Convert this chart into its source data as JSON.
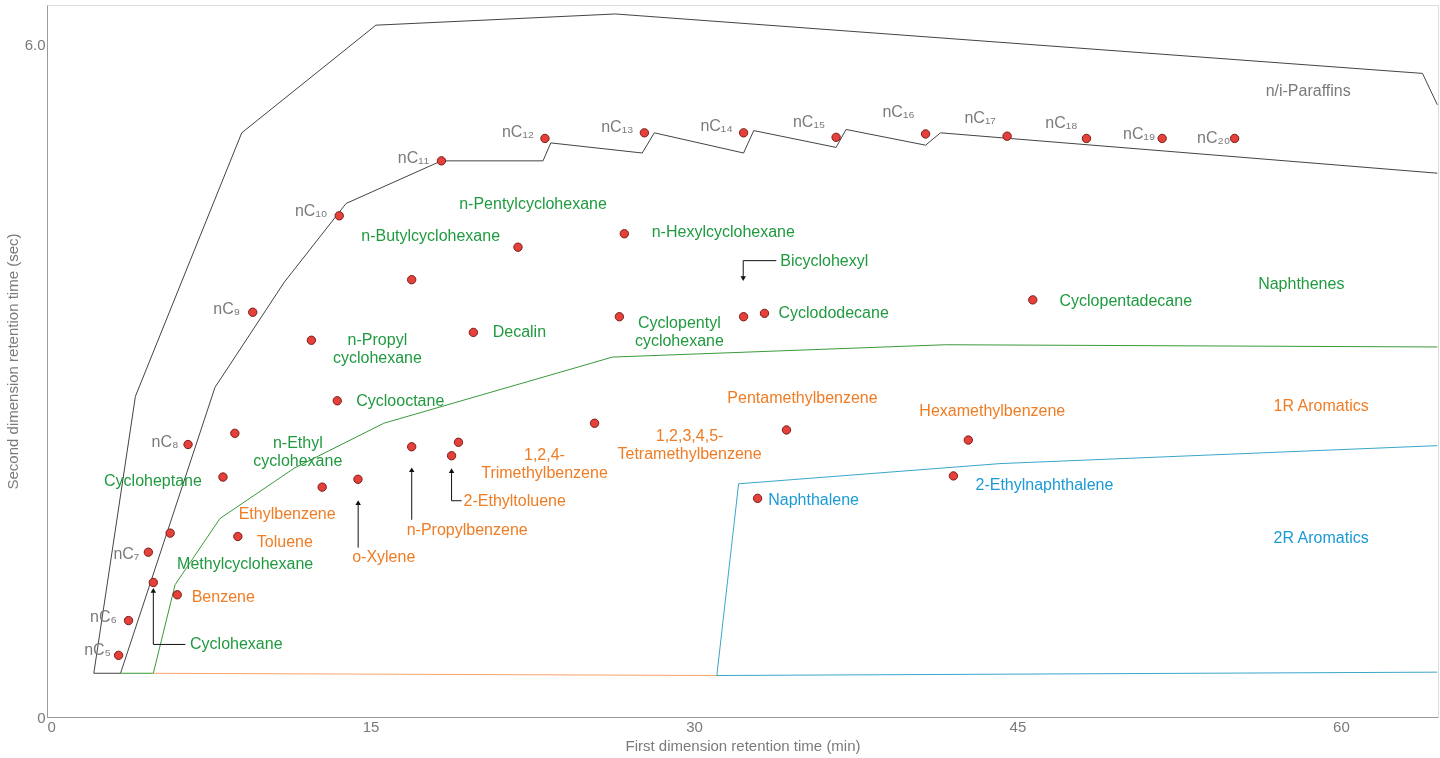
{
  "chart_data": {
    "type": "scatter",
    "xlabel": "First dimension retention time (min)",
    "ylabel": "Second dimension retention time (sec)",
    "xlim": [
      0,
      64.5
    ],
    "ylim": [
      0,
      6.35
    ],
    "xticks": [
      0,
      15,
      30,
      45,
      60
    ],
    "yticks": [
      0,
      {
        "value": 6,
        "label": "6.0"
      }
    ],
    "grid": false,
    "marker": "circle",
    "series": [
      {
        "type": "line",
        "marker": "none",
        "color": "#444444",
        "line_style": "solid",
        "x": [
          3.41,
          2.17,
          4.1,
          9.03,
          15.25,
          26.36,
          63.78,
          64.47
        ],
        "values": [
          0.39,
          0.39,
          2.86,
          5.21,
          6.17,
          6.27,
          5.74,
          5.46
        ]
      },
      {
        "type": "line",
        "marker": "none",
        "color": "#444444",
        "line_style": "solid",
        "x": [
          3.41,
          7.79,
          11.01,
          13.87,
          18.29,
          23.0,
          23.36,
          27.6,
          28.16,
          32.3,
          32.77,
          36.59,
          37.05,
          40.74,
          41.43,
          64.47
        ],
        "values": [
          0.39,
          2.94,
          3.88,
          4.58,
          4.96,
          4.96,
          5.12,
          5.03,
          5.21,
          5.03,
          5.23,
          5.08,
          5.24,
          5.1,
          5.21,
          4.85
        ]
      },
      {
        "type": "line",
        "marker": "none",
        "color": "#3a9a3a",
        "line_style": "solid",
        "x": [
          3.41,
          4.93,
          5.94,
          8.02,
          11.47,
          15.62,
          26.22,
          41.66,
          64.47
        ],
        "values": [
          0.39,
          0.39,
          1.18,
          1.77,
          2.22,
          2.62,
          3.21,
          3.32,
          3.3
        ]
      },
      {
        "type": "line",
        "marker": "none",
        "color": "#f5a36a",
        "line_style": "solid",
        "x": [
          4.93,
          31.06
        ],
        "values": [
          0.39,
          0.37
        ]
      },
      {
        "type": "line",
        "marker": "none",
        "color": "#3aa6c9",
        "line_style": "solid",
        "x": [
          64.47,
          31.06,
          32.07,
          44.19,
          64.47
        ],
        "values": [
          0.4,
          0.37,
          2.08,
          2.26,
          2.42
        ]
      },
      {
        "color": "#e5403a",
        "x": [
          3.32,
          3.78,
          4.7,
          6.54,
          9.54,
          13.55,
          18.29,
          23.09,
          27.7,
          32.3,
          36.59,
          40.74,
          44.52,
          48.2,
          51.71,
          55.07,
          4.93,
          5.71,
          8.16,
          8.71,
          13.46,
          12.26,
          16.91,
          21.84,
          26.77,
          19.77,
          26.54,
          32.3,
          33.27,
          45.71,
          6.04,
          8.85,
          12.76,
          14.42,
          16.91,
          18.76,
          19.08,
          25.39,
          34.29,
          42.72,
          32.95,
          42.03
        ],
        "values": [
          0.55,
          0.86,
          1.47,
          2.43,
          3.61,
          4.47,
          4.96,
          5.16,
          5.21,
          5.21,
          5.17,
          5.2,
          5.18,
          5.16,
          5.16,
          5.16,
          1.2,
          1.64,
          2.14,
          2.53,
          2.82,
          3.36,
          3.9,
          4.19,
          4.31,
          3.43,
          3.57,
          3.57,
          3.6,
          3.72,
          1.09,
          1.61,
          2.05,
          2.12,
          2.41,
          2.33,
          2.45,
          2.62,
          2.56,
          2.47,
          1.95,
          2.15
        ]
      }
    ],
    "annotations": [
      {
        "text": "nC₅",
        "x": 3.32,
        "y": 0.55
      },
      {
        "text": "nC₆",
        "x": 3.78,
        "y": 0.86
      },
      {
        "text": "nC₇",
        "x": 4.7,
        "y": 1.47
      },
      {
        "text": "nC₈",
        "x": 6.54,
        "y": 2.43
      },
      {
        "text": "nC₉",
        "x": 9.54,
        "y": 3.61
      },
      {
        "text": "nC₁₀",
        "x": 13.55,
        "y": 4.47
      },
      {
        "text": "nC₁₁",
        "x": 18.29,
        "y": 4.96
      },
      {
        "text": "nC₁₂",
        "x": 23.09,
        "y": 5.16
      },
      {
        "text": "nC₁₃",
        "x": 27.7,
        "y": 5.21
      },
      {
        "text": "nC₁₄",
        "x": 32.3,
        "y": 5.21
      },
      {
        "text": "nC₁₅",
        "x": 36.59,
        "y": 5.17
      },
      {
        "text": "nC₁₆",
        "x": 40.74,
        "y": 5.2
      },
      {
        "text": "nC₁₇",
        "x": 44.52,
        "y": 5.18
      },
      {
        "text": "nC₁₈",
        "x": 48.2,
        "y": 5.16
      },
      {
        "text": "nC₁₉",
        "x": 51.71,
        "y": 5.16
      },
      {
        "text": "nC₂₀",
        "x": 55.07,
        "y": 5.16
      },
      "n/i-Paraffins",
      {
        "text": "Cyclohexane",
        "x": 4.93,
        "y": 1.2
      },
      {
        "text": "Methylcyclohexane",
        "x": 5.71,
        "y": 1.64
      },
      {
        "text": "Cycloheptane",
        "x": 8.16,
        "y": 2.14
      },
      {
        "text": "n-Ethyl\ncyclohexane",
        "x": 8.71,
        "y": 2.53
      },
      {
        "text": "Cyclooctane",
        "x": 13.46,
        "y": 2.82
      },
      {
        "text": "n-Propyl\ncyclohexane",
        "x": 12.26,
        "y": 3.36
      },
      {
        "text": "n-Butylcyclohexane",
        "x": 16.91,
        "y": 3.9
      },
      {
        "text": "n-Pentylcyclohexane",
        "x": 21.84,
        "y": 4.19
      },
      {
        "text": "n-Hexylcyclohexane",
        "x": 26.77,
        "y": 4.31
      },
      {
        "text": "Decalin",
        "x": 19.77,
        "y": 3.43
      },
      {
        "text": "Cyclopentyl\ncyclohexane",
        "x": 26.54,
        "y": 3.57
      },
      "Bicyclohexyl",
      {
        "text": "Cyclododecane",
        "x": 33.27,
        "y": 3.6
      },
      {
        "text": "Cyclopentadecane",
        "x": 45.71,
        "y": 3.72
      },
      "Naphthenes",
      {
        "text": "Benzene",
        "x": 6.04,
        "y": 1.09
      },
      {
        "text": "Toluene",
        "x": 8.85,
        "y": 1.61
      },
      {
        "text": "Ethylbenzene",
        "x": 12.76,
        "y": 2.05
      },
      "o-Xylene",
      "n-Propylbenzene",
      {
        "text": "2-Ethyltoluene",
        "x": 18.76,
        "y": 2.33
      },
      {
        "text": "1,2,4-\nTrimethylbenzene",
        "x": 19.08,
        "y": 2.45
      },
      {
        "text": "1,2,3,4,5-\nTetramethylbenzene",
        "x": 25.39,
        "y": 2.62
      },
      {
        "text": "Pentamethylbenzene",
        "x": 34.29,
        "y": 2.56
      },
      {
        "text": "Hexamethylbenzene",
        "x": 42.72,
        "y": 2.47
      },
      "1R Aromatics",
      {
        "text": "Naphthalene",
        "x": 32.95,
        "y": 1.95
      },
      {
        "text": "2-Ethylnaphthalene",
        "x": 42.03,
        "y": 2.15
      },
      "2R Aromatics"
    ]
  }
}
